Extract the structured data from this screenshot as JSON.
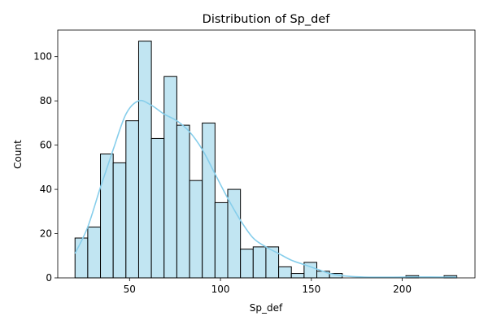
{
  "chart_data": {
    "type": "bar",
    "title": "Distribution of Sp_def",
    "xlabel": "Sp_def",
    "ylabel": "Count",
    "xlim": [
      10.5,
      240
    ],
    "ylim": [
      0,
      112
    ],
    "x_ticks": [
      50,
      100,
      150,
      200
    ],
    "y_ticks": [
      0,
      20,
      40,
      60,
      80,
      100
    ],
    "bin_start": 20,
    "bin_width": 7,
    "counts": [
      18,
      23,
      56,
      52,
      71,
      107,
      63,
      91,
      69,
      44,
      70,
      34,
      40,
      13,
      14,
      14,
      5,
      2,
      7,
      3,
      2,
      0,
      0,
      0,
      0,
      0,
      1,
      0,
      0,
      1
    ],
    "kde": {
      "x": [
        20,
        27,
        34,
        41,
        48,
        55,
        62,
        69,
        76,
        83,
        90,
        97,
        104,
        111,
        118,
        125,
        132,
        139,
        146,
        153,
        160,
        167,
        175,
        185,
        195,
        205,
        215,
        230
      ],
      "y": [
        11,
        23,
        41,
        58,
        74,
        80,
        78,
        74,
        71,
        66,
        58,
        47,
        36,
        26,
        18,
        14,
        11,
        8,
        6,
        4,
        2,
        1,
        0.5,
        0.3,
        0.3,
        0.4,
        0.4,
        0.3
      ]
    },
    "bar_color": "#c1e5f2",
    "kde_color": "#87ceeb",
    "grid": false,
    "legend": false
  }
}
